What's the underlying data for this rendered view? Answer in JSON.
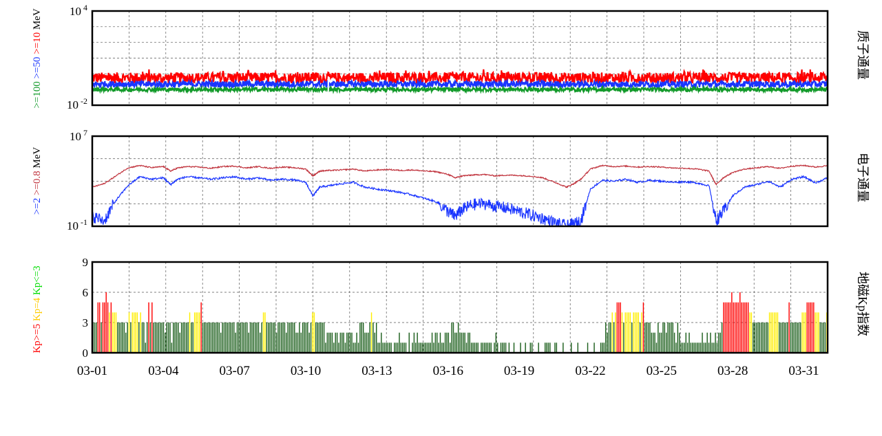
{
  "colors": {
    "red": "#ff0000",
    "blue": "#1a35ff",
    "green": "#129a2a",
    "dark_red": "#c0323c",
    "yellow": "#ffee00",
    "dark_green": "#1b5e1b",
    "bright_green": "#00dd00"
  },
  "x_axis": {
    "start_day": 1,
    "end_day": 32,
    "tick_labels": [
      "03-01",
      "03-04",
      "03-07",
      "03-10",
      "03-13",
      "03-16",
      "03-19",
      "03-22",
      "03-25",
      "03-28",
      "03-31"
    ]
  },
  "chart_data": [
    {
      "type": "line",
      "right_label": "质子通量",
      "y_scale": "log",
      "ylim": [
        0.01,
        10000
      ],
      "ytick_labels": {
        "top_base": "10",
        "top_exp": "4",
        "bottom_base": "10",
        "bottom_exp": "-2"
      },
      "ylabel_parts": [
        {
          "text": ">=100",
          "color": "#129a2a"
        },
        {
          "text": " >=50",
          "color": "#1a35ff"
        },
        {
          "text": " >=10",
          "color": "#ff0000"
        },
        {
          "text": " MeV",
          "color": "#000000"
        }
      ],
      "series": [
        {
          "color": "#ff0000",
          "level": 0.55,
          "noise": 0.35
        },
        {
          "color": "#1a35ff",
          "level": 0.22,
          "noise": 0.2
        },
        {
          "color": "#129a2a",
          "level": 0.1,
          "noise": 0.12
        }
      ]
    },
    {
      "type": "line",
      "right_label": "电子通量",
      "y_scale": "log",
      "ylim": [
        0.1,
        10000000
      ],
      "ytick_labels": {
        "top_base": "10",
        "top_exp": "7",
        "bottom_base": "10",
        "bottom_exp": "-1"
      },
      "ylabel_parts": [
        {
          "text": ">=2",
          "color": "#1a35ff"
        },
        {
          "text": " >=0.8",
          "color": "#c0323c"
        },
        {
          "text": " MeV",
          "color": "#000000"
        }
      ],
      "series": [
        {
          "color": "#c0323c",
          "x": [
            1,
            1.5,
            2,
            2.5,
            3,
            3.5,
            4,
            4.3,
            4.6,
            5,
            5.5,
            6,
            6.5,
            7,
            7.5,
            8,
            8.5,
            9,
            9.5,
            10,
            10.3,
            10.6,
            11,
            11.5,
            12,
            12.5,
            13,
            13.5,
            14,
            14.5,
            15,
            15.5,
            16,
            16.3,
            16.6,
            17,
            17.5,
            18,
            18.5,
            19,
            19.5,
            20,
            20.5,
            21,
            21.3,
            21.6,
            22,
            22.5,
            23,
            23.5,
            24,
            24.5,
            25,
            25.5,
            26,
            26.5,
            27,
            27.3,
            27.6,
            28,
            28.5,
            29,
            29.5,
            30,
            30.5,
            31,
            31.5,
            32
          ],
          "y": [
            300,
            600,
            3000,
            15000,
            25000,
            16000,
            20000,
            8000,
            15000,
            20000,
            18000,
            14000,
            20000,
            22000,
            15000,
            20000,
            14000,
            18000,
            16000,
            12000,
            3000,
            8000,
            9000,
            10000,
            12000,
            8000,
            10000,
            11000,
            9000,
            10000,
            8000,
            7000,
            4000,
            2000,
            3000,
            3500,
            4000,
            3000,
            3500,
            3200,
            2800,
            2000,
            800,
            300,
            600,
            1500,
            12000,
            25000,
            20000,
            22000,
            18000,
            20000,
            18000,
            15000,
            14000,
            12000,
            8000,
            500,
            2000,
            6000,
            12000,
            15000,
            20000,
            14000,
            22000,
            25000,
            18000,
            24000
          ]
        },
        {
          "color": "#1a35ff",
          "x": [
            1,
            1.5,
            2,
            2.5,
            3,
            3.5,
            4,
            4.3,
            4.6,
            5,
            5.5,
            6,
            6.5,
            7,
            7.5,
            8,
            8.5,
            9,
            9.5,
            10,
            10.3,
            10.6,
            11,
            11.5,
            12,
            12.5,
            13,
            13.5,
            14,
            14.5,
            15,
            15.5,
            16,
            16.3,
            16.6,
            17,
            17.5,
            18,
            18.5,
            19,
            19.5,
            20,
            20.5,
            21,
            21.3,
            21.6,
            22,
            22.5,
            23,
            23.5,
            24,
            24.5,
            25,
            25.5,
            26,
            26.5,
            27,
            27.3,
            27.6,
            28,
            28.5,
            29,
            29.5,
            30,
            30.5,
            31,
            31.5,
            32
          ],
          "y": [
            0.8,
            0.3,
            20,
            400,
            2500,
            1500,
            2000,
            500,
            1500,
            2500,
            2000,
            1500,
            2000,
            2500,
            1500,
            2000,
            1200,
            1500,
            1300,
            800,
            50,
            300,
            400,
            600,
            800,
            300,
            200,
            150,
            100,
            60,
            30,
            15,
            2,
            0.8,
            3,
            8,
            10,
            6,
            4,
            2,
            1,
            0.5,
            0.2,
            0.1,
            0.15,
            0.3,
            200,
            1200,
            1000,
            1500,
            800,
            1200,
            1000,
            800,
            900,
            700,
            400,
            0.3,
            2,
            50,
            300,
            500,
            1000,
            300,
            1500,
            2500,
            700,
            2000
          ]
        }
      ]
    },
    {
      "type": "bar",
      "right_label": "地磁Kp指数",
      "ylim": [
        0,
        9
      ],
      "ytick_labels": [
        "0",
        "3",
        "6",
        "9"
      ],
      "ylabel_parts": [
        {
          "text": "Kp>=5",
          "color": "#ff0000"
        },
        {
          "text": " Kp=4",
          "color": "#ffcc00"
        },
        {
          "text": " Kp<=3",
          "color": "#00dd00"
        }
      ],
      "bar_colors": {
        "high": "#ff0000",
        "mid": "#ffee00",
        "low": "#1b5e1b"
      },
      "values": [
        3,
        3,
        3,
        5,
        5,
        3,
        5,
        5,
        6,
        5,
        4,
        5,
        4,
        4,
        4,
        3,
        3,
        3,
        3,
        3,
        2,
        3,
        4,
        3,
        4,
        4,
        4,
        4,
        3,
        4,
        3,
        3,
        1,
        3,
        5,
        3,
        5,
        3,
        3,
        3,
        3,
        3,
        3,
        3,
        2,
        3,
        3,
        3,
        1,
        3,
        3,
        3,
        3,
        2,
        3,
        3,
        3,
        3,
        3,
        4,
        3,
        3,
        4,
        4,
        4,
        4,
        5,
        3,
        3,
        3,
        3,
        3,
        3,
        3,
        3,
        3,
        3,
        3,
        2,
        3,
        3,
        3,
        3,
        3,
        3,
        3,
        3,
        2,
        3,
        3,
        3,
        3,
        3,
        3,
        3,
        2,
        3,
        3,
        3,
        3,
        3,
        3,
        2,
        3,
        4,
        4,
        3,
        3,
        3,
        3,
        3,
        3,
        2,
        3,
        3,
        3,
        3,
        3,
        2,
        3,
        3,
        3,
        3,
        3,
        2,
        2,
        3,
        2,
        3,
        3,
        3,
        3,
        2,
        3,
        4,
        4,
        3,
        3,
        3,
        3,
        3,
        3,
        1,
        2,
        2,
        2,
        2,
        1,
        2,
        2,
        1,
        2,
        2,
        2,
        1,
        2,
        2,
        2,
        2,
        1,
        1,
        2,
        1,
        3,
        3,
        3,
        2,
        2,
        2,
        3,
        4,
        3,
        2,
        3,
        1,
        1,
        2,
        1,
        1,
        1,
        1,
        1,
        1,
        0,
        1,
        1,
        1,
        2,
        1,
        1,
        1,
        1,
        0,
        2,
        0,
        1,
        2,
        1,
        2,
        1,
        1,
        1,
        1,
        1,
        1,
        1,
        1,
        2,
        1,
        2,
        2,
        1,
        2,
        1,
        1,
        2,
        2,
        2,
        1,
        3,
        3,
        2,
        2,
        3,
        2,
        2,
        2,
        2,
        1,
        2,
        2,
        1,
        1,
        1,
        1,
        1,
        0,
        1,
        1,
        1,
        1,
        1,
        1,
        1,
        0,
        1,
        2,
        1,
        0,
        1,
        1,
        1,
        1,
        0,
        1,
        0,
        0,
        1,
        0,
        0,
        0,
        1,
        0,
        0,
        1,
        0,
        0,
        1,
        1,
        0,
        0,
        0,
        1,
        0,
        0,
        0,
        1,
        1,
        1,
        1,
        0,
        0,
        1,
        1,
        0,
        0,
        0,
        1,
        0,
        0,
        0,
        0,
        1,
        0,
        0,
        0,
        1,
        0,
        0,
        0,
        0,
        0,
        1,
        0,
        0,
        0,
        1,
        0,
        0,
        0,
        1,
        1,
        1,
        3,
        2,
        3,
        3,
        4,
        3,
        4,
        5,
        5,
        5,
        4,
        3,
        4,
        4,
        4,
        4,
        3,
        4,
        4,
        4,
        4,
        3,
        4,
        5,
        3,
        3,
        3,
        3,
        2,
        2,
        2,
        1,
        3,
        2,
        2,
        3,
        3,
        2,
        3,
        3,
        3,
        3,
        2,
        1,
        3,
        2,
        1,
        1,
        1,
        2,
        1,
        2,
        1,
        1,
        1,
        1,
        1,
        1,
        1,
        2,
        1,
        1,
        2,
        1,
        2,
        1,
        1,
        2,
        1,
        2,
        2,
        3,
        5,
        5,
        5,
        5,
        5,
        6,
        5,
        5,
        5,
        5,
        6,
        5,
        5,
        5,
        5,
        5,
        4,
        4,
        3,
        3,
        3,
        3,
        3,
        3,
        3,
        3,
        3,
        3,
        4,
        4,
        4,
        4,
        4,
        4,
        3,
        3,
        3,
        3,
        3,
        3,
        5,
        3,
        3,
        3,
        3,
        3,
        3,
        3,
        4,
        4,
        4,
        5,
        5,
        5,
        5,
        5,
        4,
        4,
        4,
        3,
        3,
        3,
        3,
        4
      ]
    }
  ]
}
